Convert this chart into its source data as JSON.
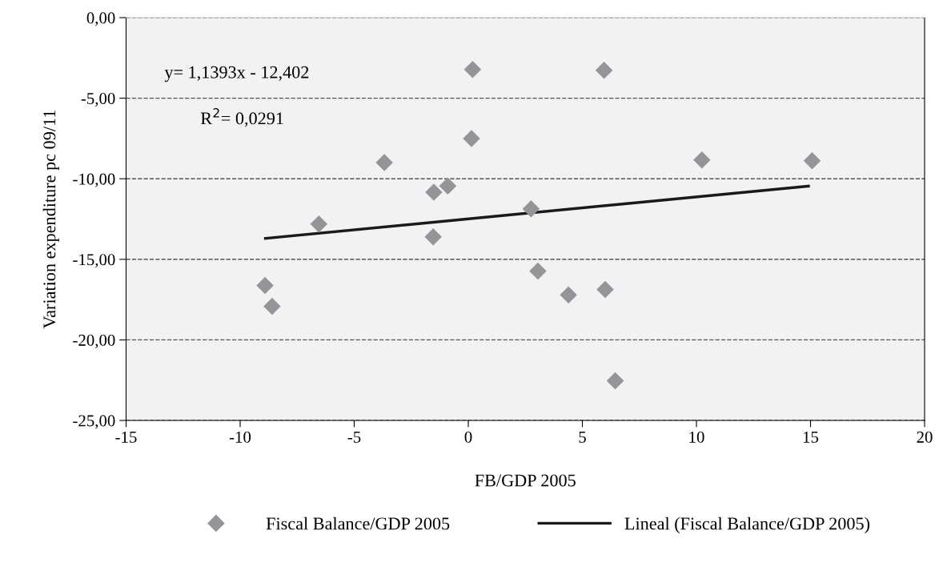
{
  "chart_data": {
    "type": "scatter",
    "xlabel": "FB/GDP 2005",
    "ylabel": "Variation expenditure pc 09/11",
    "series": [
      {
        "name": "Fiscal Balance/GDP 2005",
        "color": "#939598",
        "marker": "diamond",
        "x": [
          0.19,
          5.95,
          0.14,
          -3.68,
          -1.51,
          -0.9,
          2.75,
          -6.55,
          -1.54,
          3.05,
          4.39,
          6.0,
          -8.91,
          -8.6,
          6.44,
          10.24,
          15.07
        ],
        "values": [
          -3.22,
          -3.27,
          -7.51,
          -9.0,
          -10.84,
          -10.45,
          -11.87,
          -12.81,
          -13.61,
          -15.73,
          -17.21,
          -16.87,
          -16.62,
          -17.92,
          -22.54,
          -8.83,
          -8.88
        ]
      },
      {
        "name": "Lineal (Fiscal Balance/GDP 2005)",
        "type": "line",
        "color": "#1a1a1a",
        "line_style": "solid",
        "marker": "none",
        "x": [
          -8.89,
          14.91
        ],
        "values": [
          -13.7,
          -10.46
        ]
      }
    ],
    "xlim": [
      -15,
      20
    ],
    "xticks": [
      -15,
      -10,
      -5,
      0,
      5,
      10,
      15,
      20
    ],
    "ylim": [
      -25,
      0
    ],
    "yticks": [
      {
        "value": -25,
        "label": "-25,00"
      },
      {
        "value": -20,
        "label": "-20,00"
      },
      {
        "value": -15,
        "label": "-15,00"
      },
      {
        "value": -10,
        "label": "-10,00"
      },
      {
        "value": -5,
        "label": "-5,00"
      },
      {
        "value": 0,
        "label": "0,00"
      }
    ],
    "grid": "y",
    "legend": "bottom",
    "annotations": [
      "y= 1,1393x - 12,402",
      "R$^{2}$= 0,0291"
    ]
  }
}
